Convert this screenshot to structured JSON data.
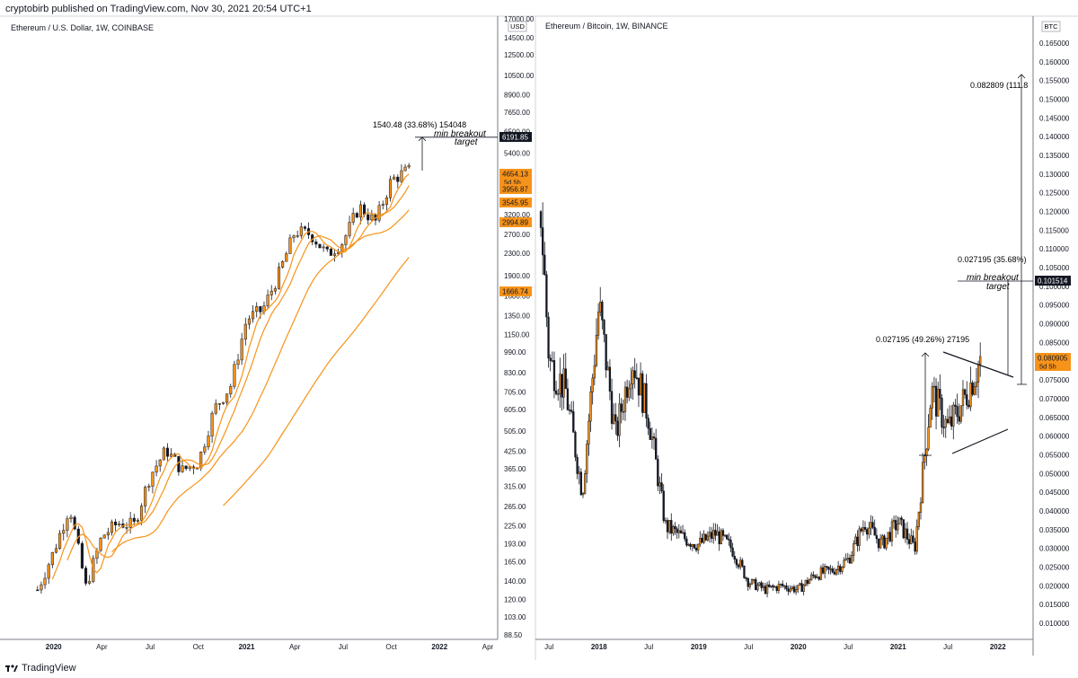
{
  "header": {
    "text": "cryptobirb published on TradingView.com, Nov 30, 2021 20:54 UTC+1"
  },
  "footer": {
    "brand": "TradingView"
  },
  "colors": {
    "candle_up": "#f7931a",
    "candle_down": "#131722",
    "ma": "#f7931a",
    "label_bg": "#f7931a",
    "current_bg": "#131722"
  },
  "chart_data": [
    {
      "type": "candlestick",
      "title": "Ethereum / U.S. Dollar, 1W, COINBASE",
      "scale": "log",
      "currency": "USD",
      "ylim": [
        88.5,
        17000
      ],
      "y_ticks": [
        "17000.00",
        "14500.00",
        "12500.00",
        "10500.00",
        "8900.00",
        "7650.00",
        "6500.00",
        "5400.00",
        "4600.00",
        "3900.00",
        "3200.00",
        "2700.00",
        "2300.00",
        "1900.00",
        "1600.00",
        "1350.00",
        "1150.00",
        "990.00",
        "830.00",
        "705.00",
        "605.00",
        "505.00",
        "425.00",
        "365.00",
        "315.00",
        "265.00",
        "225.00",
        "193.00",
        "165.00",
        "140.00",
        "120.00",
        "103.00",
        "88.50"
      ],
      "x_ticks": [
        "2020",
        "Apr",
        "Jul",
        "Oct",
        "2021",
        "Apr",
        "Jul",
        "Oct",
        "2022",
        "Apr"
      ],
      "price_labels": [
        {
          "text": "6191.85",
          "kind": "current"
        },
        {
          "text": "4654.13",
          "sub": "5d 5h",
          "kind": "orange"
        },
        {
          "text": "3956.87",
          "kind": "orange"
        },
        {
          "text": "3545.95",
          "kind": "orange"
        },
        {
          "text": "2994.89",
          "kind": "orange"
        },
        {
          "text": "1666.74",
          "kind": "orange"
        }
      ],
      "annotations": [
        "1540.48 (33.68%) 154048",
        "min breakout",
        "target"
      ],
      "weekly_closes": [
        {
          "date": "2019-12",
          "close": 130
        },
        {
          "date": "2020-01",
          "close": 180
        },
        {
          "date": "2020-02",
          "close": 265
        },
        {
          "date": "2020-03",
          "close": 133
        },
        {
          "date": "2020-04",
          "close": 205
        },
        {
          "date": "2020-05",
          "close": 230
        },
        {
          "date": "2020-06",
          "close": 226
        },
        {
          "date": "2020-07",
          "close": 345
        },
        {
          "date": "2020-08",
          "close": 430
        },
        {
          "date": "2020-09",
          "close": 360
        },
        {
          "date": "2020-10",
          "close": 386
        },
        {
          "date": "2020-11",
          "close": 610
        },
        {
          "date": "2020-12",
          "close": 740
        },
        {
          "date": "2021-01",
          "close": 1310
        },
        {
          "date": "2021-02",
          "close": 1420
        },
        {
          "date": "2021-03",
          "close": 1920
        },
        {
          "date": "2021-04",
          "close": 2770
        },
        {
          "date": "2021-05",
          "close": 2710
        },
        {
          "date": "2021-06",
          "close": 2270
        },
        {
          "date": "2021-07",
          "close": 2540
        },
        {
          "date": "2021-08",
          "close": 3430
        },
        {
          "date": "2021-09",
          "close": 3000
        },
        {
          "date": "2021-10",
          "close": 4290
        },
        {
          "date": "2021-11",
          "close": 4650
        }
      ]
    },
    {
      "type": "candlestick",
      "title": "Ethereum / Bitcoin, 1W, BINANCE",
      "scale": "linear",
      "currency": "BTC",
      "ylim": [
        0.005,
        0.165
      ],
      "y_ticks": [
        "0.165000",
        "0.160000",
        "0.155000",
        "0.150000",
        "0.145000",
        "0.140000",
        "0.135000",
        "0.130000",
        "0.125000",
        "0.120000",
        "0.115000",
        "0.110000",
        "0.105000",
        "0.100000",
        "0.095000",
        "0.090000",
        "0.085000",
        "0.080000",
        "0.075000",
        "0.070000",
        "0.065000",
        "0.060000",
        "0.055000",
        "0.050000",
        "0.045000",
        "0.040000",
        "0.035000",
        "0.030000",
        "0.025000",
        "0.020000",
        "0.015000",
        "0.010000"
      ],
      "x_ticks": [
        "Jul",
        "2018",
        "Jul",
        "2019",
        "Jul",
        "2020",
        "Jul",
        "2021",
        "Jul",
        "2022"
      ],
      "price_labels": [
        {
          "text": "0.101514",
          "kind": "current"
        },
        {
          "text": "0.080905",
          "sub": "5d 5h",
          "kind": "orange"
        }
      ],
      "annotations": [
        "0.082809 (111.8",
        "0.027195 (35.68%)",
        "min breakout",
        "target",
        "0.027195 (49.26%) 27195"
      ],
      "weekly_closes": [
        {
          "date": "2017-06",
          "close": 0.12
        },
        {
          "date": "2017-07",
          "close": 0.08
        },
        {
          "date": "2017-09",
          "close": 0.072
        },
        {
          "date": "2017-11",
          "close": 0.045
        },
        {
          "date": "2018-01",
          "close": 0.095
        },
        {
          "date": "2018-03",
          "close": 0.06
        },
        {
          "date": "2018-05",
          "close": 0.081
        },
        {
          "date": "2018-07",
          "close": 0.065
        },
        {
          "date": "2018-09",
          "close": 0.036
        },
        {
          "date": "2018-11",
          "close": 0.033
        },
        {
          "date": "2019-01",
          "close": 0.031
        },
        {
          "date": "2019-03",
          "close": 0.034
        },
        {
          "date": "2019-05",
          "close": 0.03
        },
        {
          "date": "2019-07",
          "close": 0.021
        },
        {
          "date": "2019-09",
          "close": 0.019
        },
        {
          "date": "2019-11",
          "close": 0.02
        },
        {
          "date": "2020-01",
          "close": 0.019
        },
        {
          "date": "2020-03",
          "close": 0.023
        },
        {
          "date": "2020-05",
          "close": 0.024
        },
        {
          "date": "2020-07",
          "close": 0.027
        },
        {
          "date": "2020-09",
          "close": 0.037
        },
        {
          "date": "2020-11",
          "close": 0.031
        },
        {
          "date": "2021-01",
          "close": 0.037
        },
        {
          "date": "2021-03",
          "close": 0.03
        },
        {
          "date": "2021-05",
          "close": 0.072
        },
        {
          "date": "2021-07",
          "close": 0.062
        },
        {
          "date": "2021-09",
          "close": 0.07
        },
        {
          "date": "2021-11",
          "close": 0.0809
        }
      ]
    }
  ]
}
